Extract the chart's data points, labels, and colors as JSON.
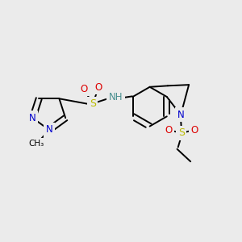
{
  "bg_color": "#ebebeb",
  "bond_color": "#000000",
  "bond_width": 1.4,
  "figsize": [
    3.0,
    3.0
  ],
  "dpi": 100,
  "colors": {
    "N": "#0000cc",
    "O": "#dd0000",
    "S": "#bbbb00",
    "NH": "#4a9090",
    "C": "#000000"
  }
}
